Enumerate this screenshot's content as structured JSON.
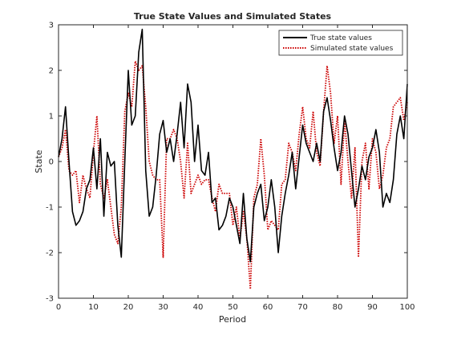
{
  "chart_data": {
    "type": "line",
    "title": "True State Values and Simulated States",
    "xlabel": "Period",
    "ylabel": "State",
    "xlim": [
      0,
      100
    ],
    "ylim": [
      -3,
      3
    ],
    "xticks": [
      0,
      10,
      20,
      30,
      40,
      50,
      60,
      70,
      80,
      90,
      100
    ],
    "yticks": [
      -3,
      -2,
      -1,
      0,
      1,
      2,
      3
    ],
    "grid": false,
    "legend_position": "top-right",
    "series": [
      {
        "name": "True state values",
        "color": "#000000",
        "style": "solid",
        "x": [
          0,
          1,
          2,
          3,
          4,
          5,
          6,
          7,
          8,
          9,
          10,
          11,
          12,
          13,
          14,
          15,
          16,
          17,
          18,
          19,
          20,
          21,
          22,
          23,
          24,
          25,
          26,
          27,
          28,
          29,
          30,
          31,
          32,
          33,
          34,
          35,
          36,
          37,
          38,
          39,
          40,
          41,
          42,
          43,
          44,
          45,
          46,
          47,
          48,
          49,
          50,
          51,
          52,
          53,
          54,
          55,
          56,
          57,
          58,
          59,
          60,
          61,
          62,
          63,
          64,
          65,
          66,
          67,
          68,
          69,
          70,
          71,
          72,
          73,
          74,
          75,
          76,
          77,
          78,
          79,
          80,
          81,
          82,
          83,
          84,
          85,
          86,
          87,
          88,
          89,
          90,
          91,
          92,
          93,
          94,
          95,
          96,
          97,
          98,
          99,
          100
        ],
        "values": [
          0.1,
          0.5,
          1.2,
          0.0,
          -1.1,
          -1.4,
          -1.3,
          -1.1,
          -0.6,
          -0.4,
          0.3,
          -0.6,
          0.5,
          -1.2,
          0.2,
          -0.1,
          0.0,
          -1.4,
          -2.1,
          0.0,
          2.0,
          0.8,
          1.0,
          2.4,
          2.9,
          -0.2,
          -1.2,
          -1.0,
          -0.3,
          0.6,
          0.9,
          0.2,
          0.5,
          0.0,
          0.6,
          1.3,
          0.3,
          1.7,
          1.3,
          0.0,
          0.8,
          -0.2,
          -0.3,
          0.2,
          -0.9,
          -0.8,
          -1.5,
          -1.4,
          -1.2,
          -0.8,
          -1.0,
          -1.4,
          -1.8,
          -0.7,
          -1.7,
          -2.2,
          -1.0,
          -0.7,
          -0.5,
          -1.3,
          -1.0,
          -0.4,
          -1.0,
          -2.0,
          -1.2,
          -0.7,
          -0.3,
          0.2,
          -0.6,
          0.1,
          0.8,
          0.4,
          0.2,
          0.0,
          0.4,
          0.0,
          1.1,
          1.4,
          0.9,
          0.3,
          -0.2,
          0.2,
          1.0,
          0.6,
          -0.2,
          -1.0,
          -0.6,
          -0.1,
          -0.4,
          0.1,
          0.3,
          0.7,
          0.2,
          -1.0,
          -0.7,
          -0.9,
          -0.4,
          0.6,
          1.0,
          0.5,
          1.7
        ]
      },
      {
        "name": "Simulated state values",
        "color": "#cc0000",
        "style": "dotted",
        "x": [
          0,
          1,
          2,
          3,
          4,
          5,
          6,
          7,
          8,
          9,
          10,
          11,
          12,
          13,
          14,
          15,
          16,
          17,
          18,
          19,
          20,
          21,
          22,
          23,
          24,
          25,
          26,
          27,
          28,
          29,
          30,
          31,
          32,
          33,
          34,
          35,
          36,
          37,
          38,
          39,
          40,
          41,
          42,
          43,
          44,
          45,
          46,
          47,
          48,
          49,
          50,
          51,
          52,
          53,
          54,
          55,
          56,
          57,
          58,
          59,
          60,
          61,
          62,
          63,
          64,
          65,
          66,
          67,
          68,
          69,
          70,
          71,
          72,
          73,
          74,
          75,
          76,
          77,
          78,
          79,
          80,
          81,
          82,
          83,
          84,
          85,
          86,
          87,
          88,
          89,
          90,
          91,
          92,
          93,
          94,
          95,
          96,
          97,
          98,
          99,
          100
        ],
        "values": [
          0.1,
          0.3,
          0.7,
          -0.2,
          -0.3,
          -0.2,
          -0.9,
          -0.3,
          -0.6,
          -0.8,
          0.2,
          1.0,
          -0.5,
          -0.8,
          -0.4,
          -1.0,
          -1.6,
          -1.8,
          -1.0,
          1.1,
          1.5,
          1.2,
          2.2,
          2.0,
          2.1,
          1.2,
          0.0,
          -0.3,
          -0.4,
          -0.4,
          -2.1,
          0.5,
          0.5,
          0.7,
          0.5,
          0.0,
          -0.8,
          0.4,
          -0.7,
          -0.5,
          -0.3,
          -0.5,
          -0.4,
          -0.4,
          -0.8,
          -1.1,
          -0.5,
          -0.7,
          -0.7,
          -0.7,
          -1.4,
          -1.0,
          -1.7,
          -1.1,
          -1.7,
          -2.8,
          -0.8,
          -0.5,
          0.5,
          -0.3,
          -1.5,
          -1.3,
          -1.4,
          -1.5,
          -0.5,
          -0.4,
          0.4,
          0.2,
          -0.2,
          0.6,
          1.2,
          0.5,
          0.3,
          1.1,
          0.2,
          -0.1,
          1.1,
          2.1,
          1.5,
          0.4,
          1.0,
          -0.5,
          0.9,
          0.0,
          -0.8,
          0.3,
          -2.1,
          0.0,
          0.4,
          -0.6,
          0.5,
          0.2,
          -0.6,
          -0.3,
          0.3,
          0.5,
          1.2,
          1.3,
          1.4,
          0.9,
          1.3
        ]
      }
    ]
  }
}
